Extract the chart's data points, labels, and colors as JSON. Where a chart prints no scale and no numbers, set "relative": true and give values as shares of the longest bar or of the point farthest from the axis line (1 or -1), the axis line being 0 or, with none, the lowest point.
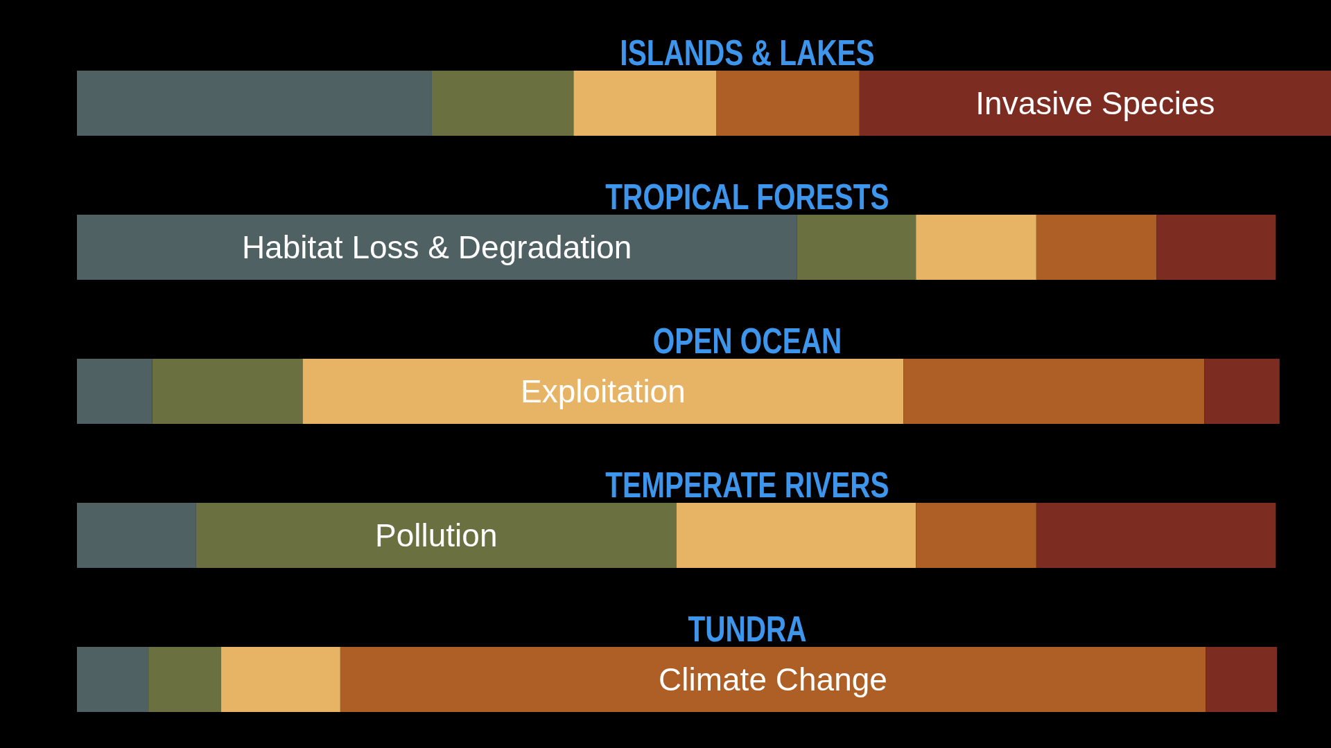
{
  "chart_data": {
    "type": "bar",
    "orientation": "horizontal",
    "stacked": true,
    "relative": true,
    "legend": false,
    "categories": [
      "ISLANDS & LAKES",
      "TROPICAL FORESTS",
      "OPEN OCEAN",
      "TEMPERATE RIVERS",
      "TUNDRA"
    ],
    "series": [
      {
        "name": "Habitat Loss & Degradation",
        "color": "#4f6163",
        "values": [
          0.283,
          0.574,
          0.06,
          0.095,
          0.057
        ]
      },
      {
        "name": "Pollution",
        "color": "#6b7041",
        "values": [
          0.113,
          0.095,
          0.12,
          0.383,
          0.058
        ]
      },
      {
        "name": "Exploitation",
        "color": "#e6b464",
        "values": [
          0.114,
          0.096,
          0.479,
          0.191,
          0.095
        ]
      },
      {
        "name": "Climate Change",
        "color": "#ae5f26",
        "values": [
          0.114,
          0.096,
          0.24,
          0.096,
          0.69
        ]
      },
      {
        "name": "Invasive Species",
        "color": "#7d2c22",
        "values": [
          0.376,
          0.095,
          0.06,
          0.191,
          0.057
        ]
      }
    ]
  }
}
